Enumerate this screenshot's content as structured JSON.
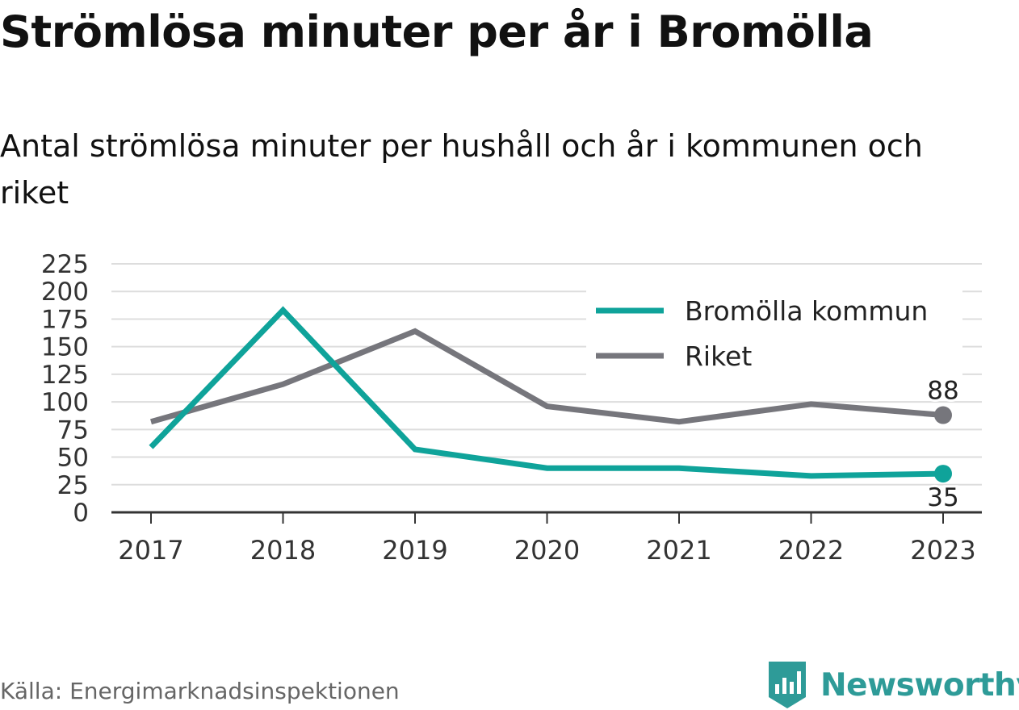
{
  "header": {
    "title": "Strömlösa minuter per år i Bromölla",
    "subtitle": "Antal strömlösa minuter per hushåll och år i kommunen och riket"
  },
  "footer": {
    "source": "Källa: Energimarknadsinspektionen",
    "logo_text": "Newsworthy"
  },
  "colors": {
    "bromolla": "#0fa39a",
    "riket": "#76767c",
    "grid": "#dddddd",
    "axis": "#333333",
    "logo": "#2e9b98"
  },
  "chart_data": {
    "type": "line",
    "title": "Strömlösa minuter per år i Bromölla",
    "subtitle": "Antal strömlösa minuter per hushåll och år i kommunen och riket",
    "x": [
      "2017",
      "2018",
      "2019",
      "2020",
      "2021",
      "2022",
      "2023"
    ],
    "ylim": [
      0,
      225
    ],
    "yticks": [
      0,
      25,
      50,
      75,
      100,
      125,
      150,
      175,
      200,
      225
    ],
    "grid": true,
    "legend_position": "top-right",
    "series": [
      {
        "name": "Bromölla kommun",
        "color": "#0fa39a",
        "values": [
          59,
          183,
          57,
          40,
          40,
          33,
          35
        ],
        "end_label": "35"
      },
      {
        "name": "Riket",
        "color": "#76767c",
        "values": [
          82,
          116,
          164,
          96,
          82,
          98,
          88
        ],
        "end_label": "88"
      }
    ]
  }
}
